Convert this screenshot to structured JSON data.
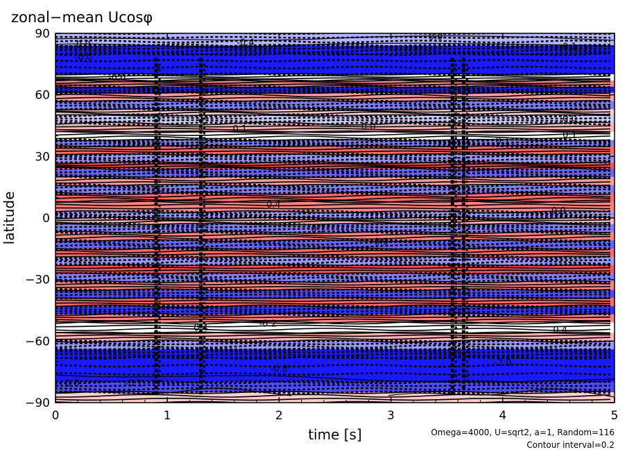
{
  "chart_data": {
    "type": "heatmap",
    "title": "zonal−mean Ucosφ",
    "xlabel": "time [s]",
    "ylabel": "latitude",
    "xlim": [
      0,
      5
    ],
    "ylim": [
      -90,
      90
    ],
    "x_ticks": [
      "0",
      "1",
      "2",
      "3",
      "4",
      "5"
    ],
    "x_tick_values": [
      0,
      1,
      2,
      3,
      4,
      5
    ],
    "y_ticks": [
      "90",
      "60",
      "30",
      "0",
      "−30",
      "−60",
      "−90"
    ],
    "y_tick_values": [
      90,
      60,
      30,
      0,
      -30,
      -60,
      -90
    ],
    "grid": false,
    "legend": "none",
    "colors": {
      "positive": "#ff2020",
      "negative": "#1a1aff",
      "zero": "#ffffff",
      "contour": "#000000"
    },
    "contour_interval": 0.2,
    "annotations": {
      "params": "Omega=4000, U=sqrt2, a=1, Random=116",
      "interval": "Contour interval=0.2"
    },
    "contour_labels": [
      {
        "text": "0.0",
        "x": 0.25,
        "y": 83
      },
      {
        "text": "-0.0",
        "x": 0.25,
        "y": 77
      },
      {
        "text": "-0.0",
        "x": 0.55,
        "y": 67
      },
      {
        "text": "-0.4",
        "x": 1.7,
        "y": 84
      },
      {
        "text": "0.0",
        "x": 3.4,
        "y": 87
      },
      {
        "text": "0.1",
        "x": 4.6,
        "y": 82
      },
      {
        "text": "0.1",
        "x": 1.65,
        "y": 42
      },
      {
        "text": "0.0",
        "x": 2.8,
        "y": 43
      },
      {
        "text": "0.0",
        "x": 4.6,
        "y": 47
      },
      {
        "text": "0.1",
        "x": 4.6,
        "y": 39
      },
      {
        "text": "0.1",
        "x": 4.0,
        "y": 36
      },
      {
        "text": "0.4",
        "x": 1.95,
        "y": 5
      },
      {
        "text": "0.0",
        "x": 4.5,
        "y": 2
      },
      {
        "text": "0.1",
        "x": 2.35,
        "y": -7
      },
      {
        "text": "-0.0",
        "x": 2.9,
        "y": -13
      },
      {
        "text": "-0.2",
        "x": 1.9,
        "y": -53
      },
      {
        "text": "0.4",
        "x": 1.3,
        "y": -55
      },
      {
        "text": "-0.4",
        "x": 4.5,
        "y": -56
      },
      {
        "text": "0.0",
        "x": 0.15,
        "y": -82
      },
      {
        "text": "-0.1",
        "x": 0.7,
        "y": -82
      },
      {
        "text": "-0.8",
        "x": 2.0,
        "y": -75
      },
      {
        "text": "-2.0",
        "x": 4.0,
        "y": -72
      }
    ],
    "latitude_bands": [
      {
        "lat": [
          84,
          90
        ],
        "v": -0.3
      },
      {
        "lat": [
          80,
          84
        ],
        "v": -0.9
      },
      {
        "lat": [
          70,
          80
        ],
        "v": -1.3
      },
      {
        "lat": [
          67,
          70
        ],
        "v": 0.0
      },
      {
        "lat": [
          64,
          67
        ],
        "v": 0.5
      },
      {
        "lat": [
          61,
          64
        ],
        "v": -1.0
      },
      {
        "lat": [
          57,
          61
        ],
        "v": 0.4
      },
      {
        "lat": [
          53,
          57
        ],
        "v": -0.5
      },
      {
        "lat": [
          50,
          53
        ],
        "v": 0.2
      },
      {
        "lat": [
          46,
          50
        ],
        "v": -0.2
      },
      {
        "lat": [
          42,
          46
        ],
        "v": 0.3
      },
      {
        "lat": [
          38,
          42
        ],
        "v": 0.0
      },
      {
        "lat": [
          35,
          38
        ],
        "v": -0.5
      },
      {
        "lat": [
          31,
          35
        ],
        "v": 0.6
      },
      {
        "lat": [
          27,
          31
        ],
        "v": -0.4
      },
      {
        "lat": [
          24,
          27
        ],
        "v": 0.7
      },
      {
        "lat": [
          20,
          24
        ],
        "v": -0.6
      },
      {
        "lat": [
          16,
          20
        ],
        "v": 0.4
      },
      {
        "lat": [
          12,
          16
        ],
        "v": -0.5
      },
      {
        "lat": [
          8,
          12
        ],
        "v": 0.6
      },
      {
        "lat": [
          3,
          8
        ],
        "v": 0.5
      },
      {
        "lat": [
          0,
          3
        ],
        "v": -0.4
      },
      {
        "lat": [
          -3,
          0
        ],
        "v": 0.3
      },
      {
        "lat": [
          -7,
          -3
        ],
        "v": -0.5
      },
      {
        "lat": [
          -11,
          -7
        ],
        "v": 0.5
      },
      {
        "lat": [
          -15,
          -11
        ],
        "v": -0.6
      },
      {
        "lat": [
          -19,
          -15
        ],
        "v": 0.6
      },
      {
        "lat": [
          -23,
          -19
        ],
        "v": -0.4
      },
      {
        "lat": [
          -27,
          -23
        ],
        "v": 0.7
      },
      {
        "lat": [
          -31,
          -27
        ],
        "v": -0.5
      },
      {
        "lat": [
          -35,
          -31
        ],
        "v": 0.5
      },
      {
        "lat": [
          -39,
          -35
        ],
        "v": -0.7
      },
      {
        "lat": [
          -43,
          -39
        ],
        "v": 0.6
      },
      {
        "lat": [
          -47,
          -43
        ],
        "v": -0.8
      },
      {
        "lat": [
          -51,
          -47
        ],
        "v": 0.5
      },
      {
        "lat": [
          -56,
          -51
        ],
        "v": 0.0
      },
      {
        "lat": [
          -60,
          -56
        ],
        "v": 0.3
      },
      {
        "lat": [
          -64,
          -60
        ],
        "v": -0.4
      },
      {
        "lat": [
          -68,
          -64
        ],
        "v": -1.0
      },
      {
        "lat": [
          -80,
          -68
        ],
        "v": -1.3
      },
      {
        "lat": [
          -85,
          -80
        ],
        "v": -0.7
      },
      {
        "lat": [
          -90,
          -85
        ],
        "v": 0.2
      }
    ],
    "vertical_streaks": [
      0.9,
      1.3,
      3.55,
      3.65
    ]
  }
}
